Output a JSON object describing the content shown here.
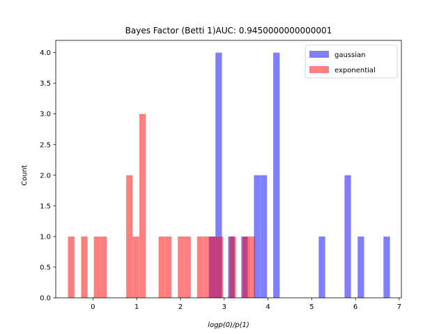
{
  "chart_data": {
    "type": "bar",
    "title": "Bayes Factor (Betti 1)AUC: 0.9450000000000001",
    "xlabel": "logp(0)/p(1)",
    "ylabel": "Count",
    "xlim": [
      -0.85,
      7.05
    ],
    "ylim": [
      0,
      4.2
    ],
    "xticks": [
      0,
      1,
      2,
      3,
      4,
      5,
      6,
      7
    ],
    "yticks": [
      0.0,
      0.5,
      1.0,
      1.5,
      2.0,
      2.5,
      3.0,
      3.5,
      4.0
    ],
    "ytick_labels": [
      "0.0",
      "0.5",
      "1.0",
      "1.5",
      "2.0",
      "2.5",
      "3.0",
      "3.5",
      "4.0"
    ],
    "legend_position": "top-right",
    "bin_width": 0.148,
    "series": [
      {
        "name": "gaussian",
        "color": "#0000ff",
        "bars": [
          {
            "x": 2.65,
            "value": 1
          },
          {
            "x": 2.8,
            "value": 4
          },
          {
            "x": 3.09,
            "value": 1
          },
          {
            "x": 3.39,
            "value": 1
          },
          {
            "x": 3.68,
            "value": 2
          },
          {
            "x": 3.83,
            "value": 2
          },
          {
            "x": 4.12,
            "value": 4
          },
          {
            "x": 5.16,
            "value": 1
          },
          {
            "x": 5.75,
            "value": 2
          },
          {
            "x": 6.05,
            "value": 1
          },
          {
            "x": 6.64,
            "value": 1
          }
        ]
      },
      {
        "name": "exponential",
        "color": "#ff0000",
        "bars": [
          {
            "x": -0.57,
            "value": 1
          },
          {
            "x": -0.27,
            "value": 1
          },
          {
            "x": 0.02,
            "value": 1
          },
          {
            "x": 0.17,
            "value": 1
          },
          {
            "x": 0.76,
            "value": 2
          },
          {
            "x": 0.91,
            "value": 1
          },
          {
            "x": 1.06,
            "value": 3
          },
          {
            "x": 1.5,
            "value": 1
          },
          {
            "x": 1.65,
            "value": 1
          },
          {
            "x": 1.94,
            "value": 1
          },
          {
            "x": 2.09,
            "value": 1
          },
          {
            "x": 2.38,
            "value": 1
          },
          {
            "x": 2.53,
            "value": 1
          },
          {
            "x": 2.68,
            "value": 1
          },
          {
            "x": 2.83,
            "value": 1
          },
          {
            "x": 3.12,
            "value": 1
          },
          {
            "x": 3.42,
            "value": 1
          },
          {
            "x": 3.56,
            "value": 1
          }
        ]
      }
    ]
  }
}
